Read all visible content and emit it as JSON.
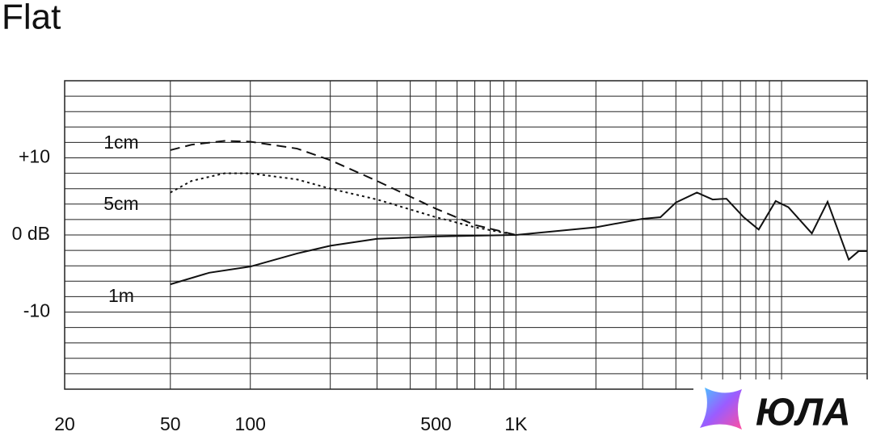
{
  "chart_data": {
    "type": "line",
    "title": "Flat",
    "watermark": "ЮЛА",
    "log_x": true,
    "grid": true,
    "xlim": [
      20,
      21000
    ],
    "ylim": [
      -20,
      20
    ],
    "xticks": [
      20,
      50,
      100,
      500,
      {
        "value": 1000,
        "label": "1K"
      }
    ],
    "yticks": [
      {
        "value": 10,
        "label": "+10"
      },
      {
        "value": 0,
        "label": "0 dB"
      },
      {
        "value": -10,
        "label": "-10"
      }
    ],
    "xgrid": [
      50,
      100,
      200,
      300,
      400,
      500,
      600,
      700,
      800,
      900,
      1000,
      2000,
      3000,
      4000,
      5000,
      6000,
      7000,
      8000,
      9000,
      10000
    ],
    "ygrid": [
      -18,
      -16,
      -14,
      -12,
      -10,
      -8,
      -6,
      -4,
      -2,
      0,
      2,
      4,
      6,
      8,
      10,
      12,
      14,
      16,
      18
    ],
    "series": [
      {
        "name": "1cm",
        "color": "#111111",
        "style": "dashed",
        "x": [
          50,
          60,
          80,
          100,
          150,
          200,
          300,
          500,
          700,
          1000
        ],
        "values": [
          11,
          11.7,
          12.2,
          12.1,
          11.2,
          9.7,
          7,
          3.4,
          1.3,
          0
        ]
      },
      {
        "name": "5cm",
        "color": "#111111",
        "style": "dotted",
        "x": [
          50,
          60,
          80,
          100,
          150,
          200,
          300,
          500,
          700,
          1000
        ],
        "values": [
          5.5,
          7,
          8,
          8,
          7.2,
          6,
          4.6,
          2.3,
          1,
          0
        ]
      },
      {
        "name": "1m",
        "color": "#111111",
        "style": "solid",
        "x": [
          50,
          70,
          100,
          150,
          200,
          300,
          500,
          1000,
          2000,
          3000,
          3500,
          4000,
          4800,
          5500,
          6200,
          7200,
          8200,
          9500,
          10600,
          13000,
          14900,
          17900,
          19500,
          21000
        ],
        "values": [
          -6.4,
          -4.9,
          -4.1,
          -2.4,
          -1.4,
          -0.5,
          -0.2,
          0,
          1,
          2.1,
          2.3,
          4.2,
          5.5,
          4.6,
          4.7,
          2.3,
          0.7,
          4.4,
          3.6,
          0.2,
          4.3,
          -3.2,
          -2.1,
          -2.1
        ]
      }
    ]
  }
}
